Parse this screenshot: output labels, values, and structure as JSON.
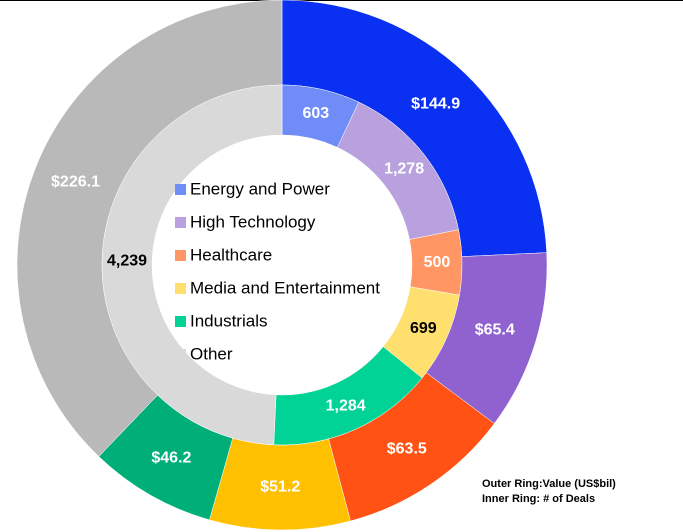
{
  "chart_data": {
    "type": "donut",
    "categories": [
      "Energy and Power",
      "High Technology",
      "Healthcare",
      "Media and Entertainment",
      "Industrials",
      "Other"
    ],
    "rings": [
      {
        "values": [
          144.9,
          65.4,
          63.5,
          51.2,
          46.2,
          226.1
        ],
        "value_labels": [
          "$144.9",
          "$65.4",
          "$63.5",
          "$51.2",
          "$46.2",
          "$226.1"
        ],
        "colors": [
          "#0a30f2",
          "#8f62cf",
          "#ff5214",
          "#ffc000",
          "#00af78",
          "#b9b9b9"
        ]
      },
      {
        "values": [
          603,
          1278,
          500,
          699,
          1284,
          4239
        ],
        "value_labels": [
          "603",
          "1,278",
          "500",
          "699",
          "1,284",
          "4,239"
        ],
        "colors": [
          "#6f8cf7",
          "#b9a1e0",
          "#ff9664",
          "#ffdf6e",
          "#00d395",
          "#d9d9d9"
        ]
      }
    ],
    "legend_colors": [
      "#6f8cf7",
      "#b9a1e0",
      "#ff9664",
      "#ffdf6e",
      "#00d395",
      "#d9d9d9"
    ],
    "annotations": [
      "Outer Ring:Value (US$bil)",
      "Inner Ring: # of Deals"
    ]
  }
}
